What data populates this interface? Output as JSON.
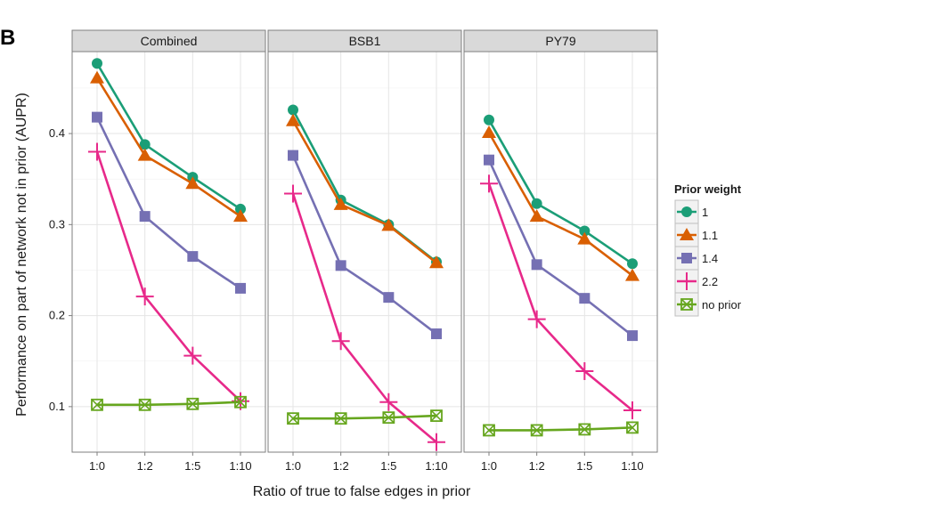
{
  "figure_label": "B",
  "chart_data": {
    "type": "line",
    "panels": [
      "Combined",
      "BSB1",
      "PY79"
    ],
    "categories": [
      "1:0",
      "1:2",
      "1:5",
      "1:10"
    ],
    "xlabel": "Ratio of true to false edges in prior",
    "ylabel": "Performance on part of network not in prior (AUPR)",
    "ylim": [
      0.05,
      0.49
    ],
    "yticks": [
      0.1,
      0.2,
      0.3,
      0.4
    ],
    "ytick_labels": [
      "0.1",
      "0.2",
      "0.3",
      "0.4"
    ],
    "grid": true,
    "legend": {
      "title": "Prior weight",
      "position": "right"
    },
    "series": [
      {
        "name": "1",
        "color": "#1b9e77",
        "shape": "circle",
        "values": [
          [
            0.477,
            0.388,
            0.352,
            0.317
          ],
          [
            0.426,
            0.327,
            0.3,
            0.259
          ],
          [
            0.415,
            0.323,
            0.293,
            0.257
          ]
        ]
      },
      {
        "name": "1.1",
        "color": "#d95f02",
        "shape": "triangle",
        "values": [
          [
            0.461,
            0.376,
            0.345,
            0.309
          ],
          [
            0.414,
            0.322,
            0.299,
            0.258
          ],
          [
            0.401,
            0.309,
            0.284,
            0.244
          ]
        ]
      },
      {
        "name": "1.4",
        "color": "#7570b3",
        "shape": "square",
        "values": [
          [
            0.418,
            0.309,
            0.265,
            0.23
          ],
          [
            0.376,
            0.255,
            0.22,
            0.18
          ],
          [
            0.371,
            0.256,
            0.219,
            0.178
          ]
        ]
      },
      {
        "name": "2.2",
        "color": "#e7298a",
        "shape": "plus",
        "values": [
          [
            0.38,
            0.221,
            0.156,
            0.106
          ],
          [
            0.334,
            0.172,
            0.105,
            0.061
          ],
          [
            0.345,
            0.196,
            0.139,
            0.096
          ]
        ]
      },
      {
        "name": "no prior",
        "color": "#66a61e",
        "shape": "boxcross",
        "values": [
          [
            0.102,
            0.102,
            0.103,
            0.105
          ],
          [
            0.087,
            0.087,
            0.088,
            0.09
          ],
          [
            0.074,
            0.074,
            0.075,
            0.077
          ]
        ]
      }
    ]
  }
}
